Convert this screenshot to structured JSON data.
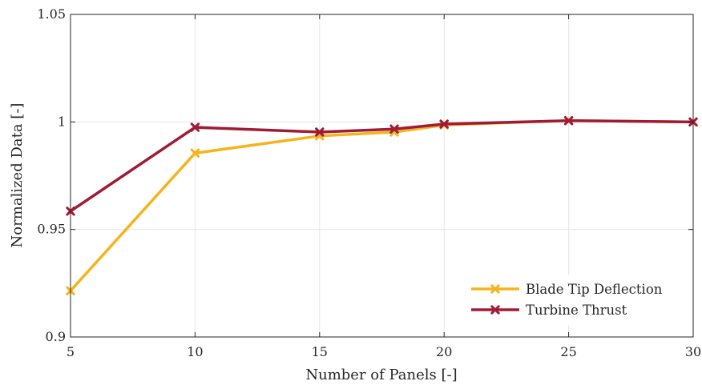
{
  "chart_data": {
    "type": "line",
    "title": "",
    "xlabel": "Number of Panels [-]",
    "ylabel": "Normalized Data [-]",
    "xlim": [
      5,
      30
    ],
    "ylim": [
      0.9,
      1.05
    ],
    "xticks": [
      5,
      10,
      15,
      20,
      25,
      30
    ],
    "yticks": [
      0.9,
      0.95,
      1.0,
      1.05
    ],
    "xtick_labels": [
      "5",
      "10",
      "15",
      "20",
      "25",
      "30"
    ],
    "ytick_labels": [
      "0.9",
      "0.95",
      "1",
      "1.05"
    ],
    "grid": true,
    "legend_position": "bottom-right",
    "series": [
      {
        "name": "Blade Tip Deflection",
        "color": "#F5B41E",
        "marker": "x",
        "x": [
          5,
          10,
          15,
          18,
          20,
          25,
          30
        ],
        "y": [
          0.9215,
          0.9855,
          0.9935,
          0.9953,
          0.9986,
          1.0006,
          1.0
        ]
      },
      {
        "name": "Turbine Thrust",
        "color": "#A01C36",
        "marker": "x",
        "x": [
          5,
          10,
          15,
          18,
          20,
          25,
          30
        ],
        "y": [
          0.9585,
          0.9975,
          0.9953,
          0.9967,
          0.999,
          1.0006,
          1.0
        ]
      }
    ]
  }
}
